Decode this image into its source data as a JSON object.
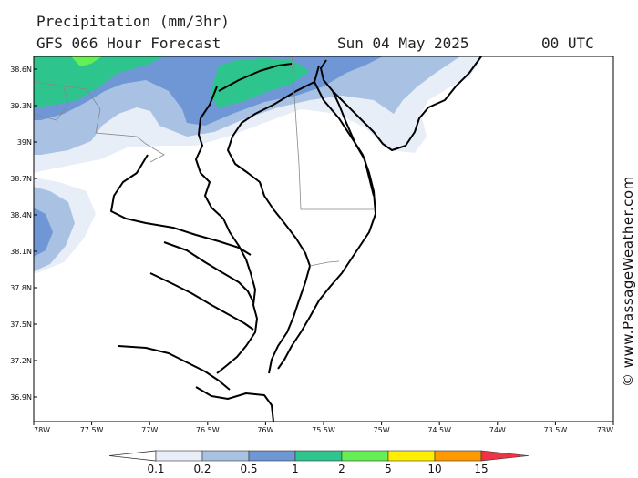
{
  "header": {
    "title": "Precipitation (mm/3hr)",
    "subtitle": "GFS 066 Hour Forecast",
    "date": "Sun 04 May 2025",
    "time": "00 UTC"
  },
  "credit": "© www.PassageWeather.com",
  "axes": {
    "lat_labels": [
      "38.6N",
      "39.3N",
      "39N",
      "38.7N",
      "38.4N",
      "38.1N",
      "37.8N",
      "37.5N",
      "37.2N",
      "36.9N"
    ],
    "lon_labels": [
      "78W",
      "77.5W",
      "77W",
      "76.5W",
      "76W",
      "75.5W",
      "75W",
      "74.5W",
      "74W",
      "73.5W",
      "73W"
    ]
  },
  "legend": {
    "bins": [
      {
        "label": "0.1",
        "color": "#e8eef8"
      },
      {
        "label": "0.2",
        "color": "#a9c2e4"
      },
      {
        "label": "0.5",
        "color": "#6f97d6"
      },
      {
        "label": "1",
        "color": "#2ec48e"
      },
      {
        "label": "2",
        "color": "#66ee55"
      },
      {
        "label": "5",
        "color": "#ffee00"
      },
      {
        "label": "10",
        "color": "#ff9900"
      },
      {
        "label": "15",
        "color": "#ee3344"
      }
    ]
  }
}
